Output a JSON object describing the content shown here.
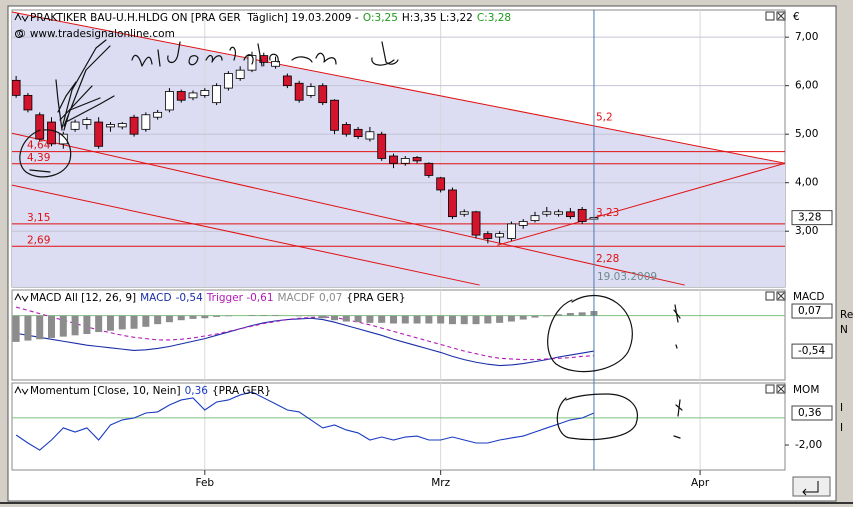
{
  "window": {
    "side_panel": [
      "Re",
      "N",
      "I",
      "I"
    ]
  },
  "chart_data": [
    {
      "type": "candlestick",
      "title": "PRAKTIKER BAU-U.H.HLDG ON [PRA GER  Täglich] 19.03.2009 -",
      "ohlc": [
        {
          "text": "O:3,25",
          "color": "#1a9a1a"
        },
        {
          "text": "H:3,35 L:3,22",
          "color": "#000000"
        },
        {
          "text": "C:3,28",
          "color": "#1a9a1a"
        }
      ],
      "watermark": "© www.tradesignalonline.com",
      "axis_title": "€",
      "x": [
        0,
        1,
        2,
        3,
        4,
        5,
        6,
        7,
        8,
        9,
        10,
        11,
        12,
        13,
        14,
        15,
        16,
        17,
        18,
        19,
        20,
        21,
        22,
        23,
        24,
        25,
        26,
        27,
        28,
        29,
        30,
        31,
        32,
        33,
        34,
        35,
        36,
        37,
        38,
        39,
        40,
        41,
        42,
        43,
        44,
        45,
        46,
        47,
        48,
        49
      ],
      "open": [
        6.11,
        5.8,
        5.4,
        5.25,
        4.8,
        5.1,
        5.2,
        5.25,
        5.15,
        5.15,
        5.35,
        5.1,
        5.35,
        5.5,
        5.88,
        5.75,
        5.8,
        5.65,
        5.95,
        6.15,
        6.32,
        6.62,
        6.4,
        6.2,
        6.05,
        5.8,
        6.0,
        5.7,
        5.2,
        5.1,
        4.9,
        5.0,
        4.55,
        4.4,
        4.52,
        4.4,
        4.1,
        3.85,
        3.35,
        3.4,
        2.95,
        2.88,
        2.85,
        3.12,
        3.22,
        3.35,
        3.35,
        3.4,
        3.45,
        3.25
      ],
      "high": [
        6.2,
        5.85,
        5.45,
        5.35,
        5.05,
        5.3,
        5.35,
        5.35,
        5.25,
        5.25,
        5.4,
        5.45,
        5.5,
        5.95,
        5.92,
        5.9,
        5.95,
        6.05,
        6.3,
        6.4,
        6.7,
        6.68,
        6.6,
        6.25,
        6.1,
        6.05,
        6.05,
        5.72,
        5.25,
        5.15,
        5.15,
        5.05,
        4.6,
        4.55,
        4.55,
        4.42,
        4.12,
        3.9,
        3.45,
        3.42,
        3.0,
        3.0,
        3.2,
        3.25,
        3.4,
        3.5,
        3.45,
        3.48,
        3.5,
        3.35
      ],
      "low": [
        5.75,
        5.45,
        4.85,
        4.75,
        4.7,
        5.05,
        5.1,
        4.7,
        5.05,
        5.1,
        4.95,
        5.05,
        5.3,
        5.45,
        5.65,
        5.7,
        5.75,
        5.6,
        5.9,
        6.1,
        6.28,
        6.4,
        6.35,
        5.95,
        5.65,
        5.75,
        5.6,
        5.0,
        4.95,
        4.9,
        4.85,
        4.45,
        4.3,
        4.35,
        4.4,
        4.1,
        3.8,
        3.25,
        3.3,
        2.85,
        2.75,
        2.75,
        2.8,
        3.05,
        3.18,
        3.3,
        3.3,
        3.25,
        3.15,
        3.22
      ],
      "close": [
        5.8,
        5.5,
        4.9,
        4.8,
        5.0,
        5.25,
        5.3,
        4.75,
        5.2,
        5.22,
        5.0,
        5.4,
        5.45,
        5.88,
        5.7,
        5.85,
        5.9,
        6.0,
        6.25,
        6.32,
        6.62,
        6.48,
        6.5,
        6.0,
        5.7,
        5.98,
        5.65,
        5.08,
        5.0,
        4.95,
        5.05,
        4.5,
        4.4,
        4.5,
        4.45,
        4.15,
        3.85,
        3.3,
        3.4,
        2.92,
        2.85,
        2.95,
        3.15,
        3.2,
        3.32,
        3.4,
        3.4,
        3.3,
        3.2,
        3.28
      ],
      "up_color": "#ffffff",
      "down_color": "#d2142c",
      "channel_fill": "#dcdcf3",
      "xlim": [
        -0.35,
        65.2
      ],
      "xticks": [
        {
          "value": 16,
          "label": "Feb"
        },
        {
          "value": 36,
          "label": "Mrz"
        },
        {
          "value": 58,
          "label": "Apr"
        }
      ],
      "ylim": [
        1.85,
        7.56
      ],
      "yticks": [
        {
          "value": 3,
          "label": "3,00"
        },
        {
          "value": 4,
          "label": "4,00"
        },
        {
          "value": 5,
          "label": "5,00"
        },
        {
          "value": 6,
          "label": "6,00"
        },
        {
          "value": 7,
          "label": "7,00"
        }
      ],
      "grid": true,
      "markers": [
        {
          "value": 3.28,
          "label": "3,28"
        }
      ],
      "levels": [
        {
          "value": 4.64,
          "label": "4,64"
        },
        {
          "value": 4.39,
          "label": "4,39"
        },
        {
          "value": 3.15,
          "label": "3,15"
        },
        {
          "value": 2.69,
          "label": "2,69"
        }
      ],
      "level_color": "#e01010",
      "trendlines": [
        {
          "points": [
            [
              -0.35,
              7.52
            ],
            [
              65.2,
              4.4
            ]
          ],
          "marker": {
            "x": 49,
            "value": 5.2,
            "label": "5,2"
          }
        },
        {
          "points": [
            [
              -0.35,
              5.02
            ],
            [
              56.7,
              1.89
            ]
          ],
          "marker": {
            "x": 49,
            "value": 2.28,
            "label": "2,28"
          }
        },
        {
          "points": [
            [
              -0.35,
              3.95
            ],
            [
              39.3,
              1.89
            ]
          ]
        },
        {
          "points": [
            [
              40.8,
              2.71
            ],
            [
              65.2,
              4.4
            ]
          ],
          "marker": {
            "x": 49,
            "value": 3.23,
            "label": "3,23"
          }
        }
      ],
      "cursor": {
        "x": 49,
        "label": "19.03.2009"
      }
    },
    {
      "type": "macd",
      "title": "MACD All [12, 26, 9]",
      "source": "{PRA GER}",
      "axis_title": "MACD",
      "series": [
        {
          "name": "MACD",
          "legend_value": "-0,54",
          "color": "#1a2ea8",
          "style": "line",
          "values": [
            -0.27,
            -0.3,
            -0.33,
            -0.36,
            -0.39,
            -0.42,
            -0.45,
            -0.47,
            -0.49,
            -0.51,
            -0.53,
            -0.52,
            -0.5,
            -0.47,
            -0.43,
            -0.39,
            -0.35,
            -0.3,
            -0.25,
            -0.2,
            -0.15,
            -0.11,
            -0.08,
            -0.06,
            -0.05,
            -0.04,
            -0.06,
            -0.1,
            -0.15,
            -0.2,
            -0.25,
            -0.3,
            -0.36,
            -0.41,
            -0.46,
            -0.51,
            -0.56,
            -0.62,
            -0.67,
            -0.71,
            -0.74,
            -0.76,
            -0.75,
            -0.73,
            -0.7,
            -0.67,
            -0.63,
            -0.6,
            -0.57,
            -0.54
          ]
        },
        {
          "name": "Trigger",
          "legend_value": "-0,61",
          "color": "#b21ab8",
          "style": "dashed",
          "values": [
            0.13,
            0.08,
            0.03,
            -0.02,
            -0.07,
            -0.12,
            -0.17,
            -0.22,
            -0.26,
            -0.3,
            -0.33,
            -0.35,
            -0.37,
            -0.37,
            -0.36,
            -0.34,
            -0.31,
            -0.28,
            -0.24,
            -0.2,
            -0.16,
            -0.12,
            -0.09,
            -0.06,
            -0.04,
            -0.03,
            -0.02,
            -0.03,
            -0.06,
            -0.1,
            -0.14,
            -0.19,
            -0.24,
            -0.29,
            -0.34,
            -0.39,
            -0.44,
            -0.49,
            -0.54,
            -0.58,
            -0.62,
            -0.65,
            -0.66,
            -0.67,
            -0.67,
            -0.66,
            -0.65,
            -0.64,
            -0.62,
            -0.61
          ]
        },
        {
          "name": "MACDF",
          "legend_value": "0,07",
          "color": "#8c8c8c",
          "style": "bar",
          "values": [
            -0.4,
            -0.38,
            -0.36,
            -0.34,
            -0.32,
            -0.3,
            -0.28,
            -0.25,
            -0.23,
            -0.21,
            -0.2,
            -0.17,
            -0.13,
            -0.1,
            -0.07,
            -0.05,
            -0.04,
            -0.02,
            -0.01,
            0,
            0.01,
            0.01,
            0.01,
            0,
            -0.01,
            -0.01,
            -0.04,
            -0.07,
            -0.09,
            -0.1,
            -0.11,
            -0.11,
            -0.12,
            -0.12,
            -0.12,
            -0.12,
            -0.12,
            -0.13,
            -0.13,
            -0.13,
            -0.12,
            -0.11,
            -0.09,
            -0.06,
            -0.03,
            -0.01,
            0.02,
            0.04,
            0.05,
            0.07
          ]
        }
      ],
      "ylim": [
        -0.98,
        0.39
      ],
      "yticks": [],
      "zero_line": true,
      "markers": [
        {
          "value": 0.07,
          "label": "0,07"
        },
        {
          "value": -0.54,
          "label": "-0,54"
        }
      ]
    },
    {
      "type": "line",
      "title": "Momentum [Close, 10, Nein]",
      "source": "{PRA GER}",
      "axis_title": "MOM",
      "series": [
        {
          "name": null,
          "legend_value": "0,36",
          "color": "#1a3cc0",
          "style": "line",
          "values": [
            -1.26,
            -1.85,
            -2.37,
            -1.63,
            -0.74,
            -1.04,
            -0.74,
            -1.63,
            -0.52,
            -0.15,
            -0.01,
            0.36,
            0.44,
            0.95,
            1.32,
            1.47,
            0.58,
            1.17,
            1.32,
            1.69,
            1.91,
            1.47,
            1.03,
            0.58,
            0.44,
            -0.15,
            -0.74,
            -0.52,
            -0.89,
            -1.11,
            -1.63,
            -1.41,
            -1.63,
            -1.41,
            -1.34,
            -1.63,
            -1.63,
            -1.41,
            -1.63,
            -1.85,
            -1.85,
            -1.63,
            -1.48,
            -1.34,
            -1.04,
            -0.74,
            -0.45,
            -0.15,
            -0.01,
            0.36
          ]
        }
      ],
      "ylim": [
        -3.84,
        2.57
      ],
      "yticks": [
        {
          "value": -2,
          "label": "-2,00"
        }
      ],
      "zero_line": true,
      "markers": [
        {
          "value": 0.36,
          "label": "0,36"
        }
      ]
    }
  ]
}
